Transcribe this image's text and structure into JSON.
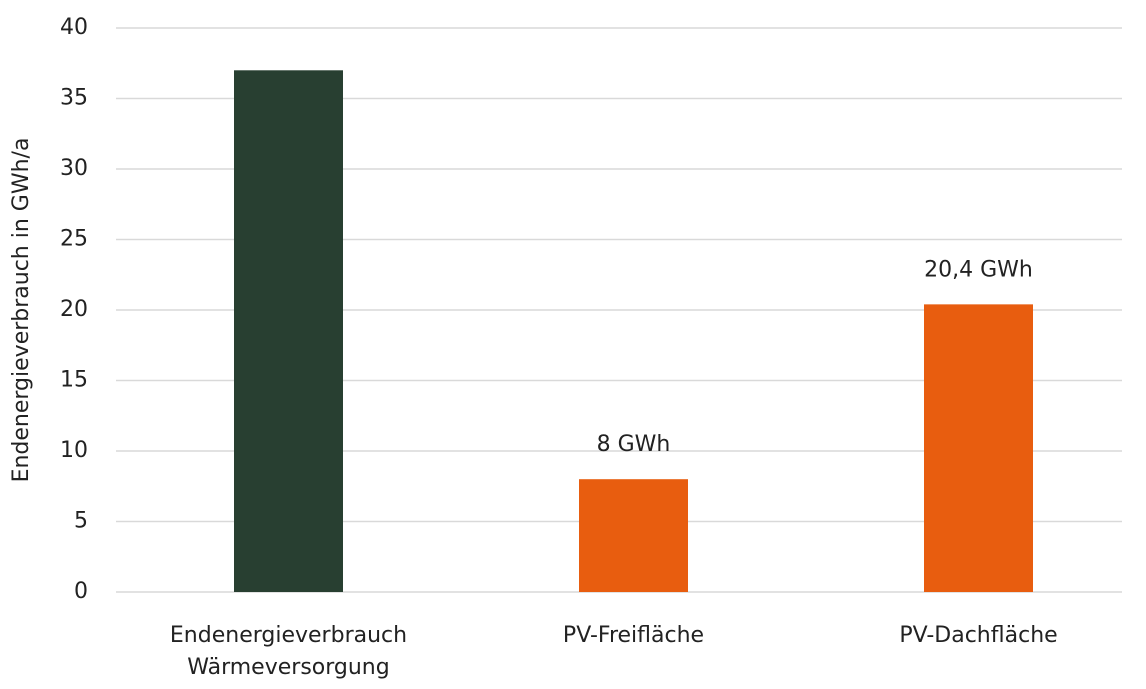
{
  "chart_data": {
    "type": "bar",
    "ylabel": "Endenergieverbrauch in GWh/a",
    "categories": [
      "Endenergieverbrauch Wärmeversorgung",
      "PV-Freifläche",
      "PV-Dachfläche"
    ],
    "values": [
      37,
      8,
      20.4
    ],
    "value_labels": [
      null,
      "8 GWh",
      "20,4 GWh"
    ],
    "colors": [
      "#283f31",
      "#e85d0f",
      "#e85d0f"
    ],
    "ylim": [
      0,
      40
    ],
    "yticks": [
      0,
      5,
      10,
      15,
      20,
      25,
      30,
      35,
      40
    ],
    "grid": true
  }
}
